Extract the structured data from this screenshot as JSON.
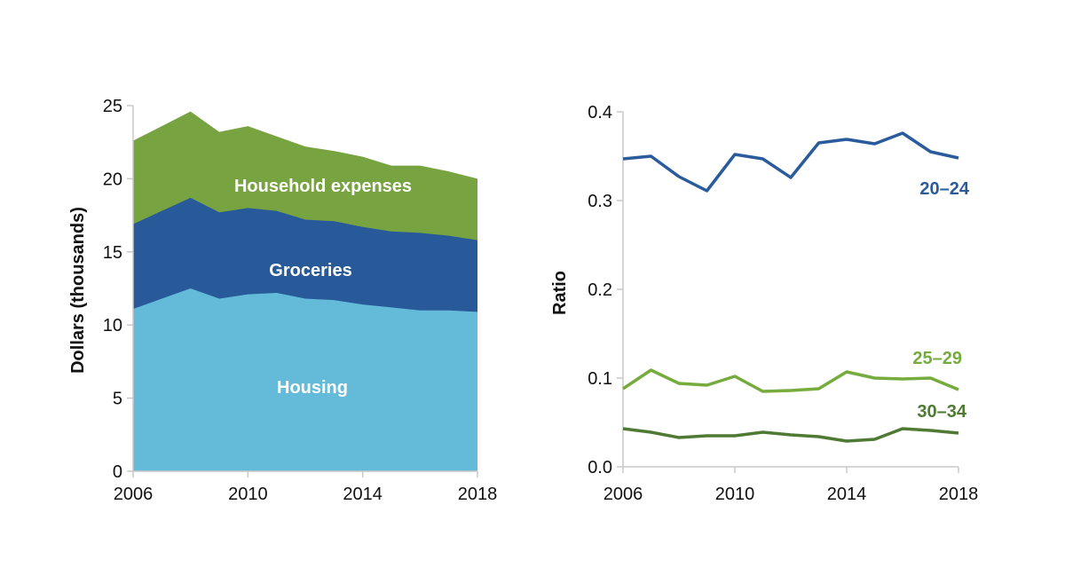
{
  "chart_data": [
    {
      "type": "area",
      "stacked": true,
      "title": "",
      "xlabel": "",
      "ylabel": "Dollars (thousands)",
      "x": [
        2006,
        2007,
        2008,
        2009,
        2010,
        2011,
        2012,
        2013,
        2014,
        2015,
        2016,
        2017,
        2018
      ],
      "xticks": [
        "2006",
        "2010",
        "2014",
        "2018"
      ],
      "yticks": [
        "0",
        "5",
        "10",
        "15",
        "20",
        "25"
      ],
      "ylim": [
        0,
        25
      ],
      "grid": false,
      "series": [
        {
          "name": "Housing",
          "color": "#64BAD9",
          "cumulative_top": [
            11.1,
            11.8,
            12.5,
            11.8,
            12.1,
            12.2,
            11.8,
            11.7,
            11.4,
            11.2,
            11.0,
            11.0,
            10.9
          ]
        },
        {
          "name": "Groceries",
          "color": "#285A9A",
          "cumulative_top": [
            16.9,
            17.8,
            18.7,
            17.7,
            18.0,
            17.8,
            17.2,
            17.1,
            16.7,
            16.4,
            16.3,
            16.1,
            15.8
          ]
        },
        {
          "name": "Household expenses",
          "color": "#78A341",
          "cumulative_top": [
            22.6,
            23.6,
            24.6,
            23.2,
            23.6,
            22.9,
            22.2,
            21.9,
            21.5,
            20.9,
            20.9,
            20.5,
            20.0
          ]
        }
      ]
    },
    {
      "type": "line",
      "title": "",
      "xlabel": "",
      "ylabel": "Ratio",
      "x": [
        2006,
        2007,
        2008,
        2009,
        2010,
        2011,
        2012,
        2013,
        2014,
        2015,
        2016,
        2017,
        2018
      ],
      "xticks": [
        "2006",
        "2010",
        "2014",
        "2018"
      ],
      "yticks": [
        "0.0",
        "0.1",
        "0.2",
        "0.3",
        "0.4"
      ],
      "ylim": [
        0,
        0.4
      ],
      "grid": false,
      "series": [
        {
          "name": "20–24",
          "color": "#2A5B9C",
          "values": [
            0.347,
            0.35,
            0.327,
            0.311,
            0.352,
            0.347,
            0.326,
            0.365,
            0.369,
            0.364,
            0.376,
            0.355,
            0.348
          ]
        },
        {
          "name": "25–29",
          "color": "#76AB3E",
          "values": [
            0.088,
            0.109,
            0.094,
            0.092,
            0.102,
            0.085,
            0.086,
            0.088,
            0.107,
            0.1,
            0.099,
            0.1,
            0.087
          ]
        },
        {
          "name": "30–34",
          "color": "#4E7A34",
          "values": [
            0.043,
            0.039,
            0.033,
            0.035,
            0.035,
            0.039,
            0.036,
            0.034,
            0.029,
            0.031,
            0.043,
            0.041,
            0.038
          ]
        }
      ]
    }
  ]
}
